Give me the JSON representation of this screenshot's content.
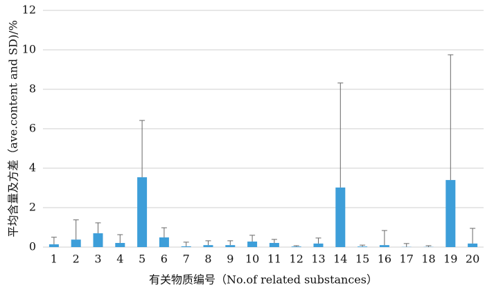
{
  "chart_data": {
    "type": "bar",
    "x_label": "有关物质编号（No.of related substances）",
    "y_label": "平均含量及方差（ave.content and SD)/%",
    "categories": [
      "1",
      "2",
      "3",
      "4",
      "5",
      "6",
      "7",
      "8",
      "9",
      "10",
      "11",
      "12",
      "13",
      "14",
      "15",
      "16",
      "17",
      "18",
      "19",
      "20"
    ],
    "series": [
      {
        "color": "#3d9ed9",
        "values": [
          0.14,
          0.38,
          0.7,
          0.21,
          3.54,
          0.49,
          0.04,
          0.1,
          0.1,
          0.28,
          0.21,
          0.03,
          0.18,
          3.02,
          0.03,
          0.1,
          0.01,
          0.01,
          3.4,
          0.18
        ],
        "errors": [
          0.36,
          1.0,
          0.53,
          0.42,
          2.88,
          0.49,
          0.21,
          0.22,
          0.22,
          0.32,
          0.18,
          0.04,
          0.28,
          5.3,
          0.07,
          0.74,
          0.17,
          0.06,
          6.35,
          0.77
        ]
      }
    ],
    "ylim": [
      0,
      12
    ],
    "yticks": [
      0,
      2,
      4,
      6,
      8,
      10,
      12
    ],
    "grid": true
  }
}
